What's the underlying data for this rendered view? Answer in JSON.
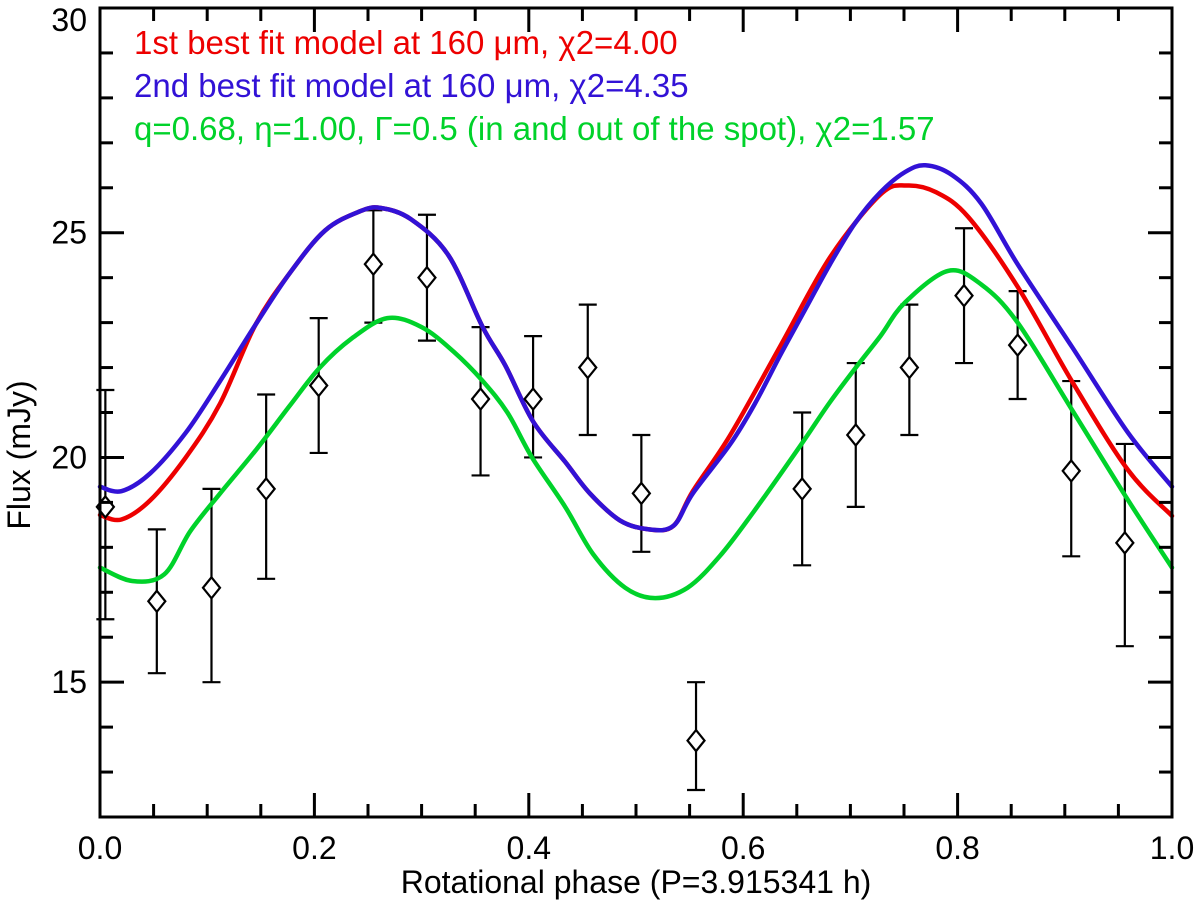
{
  "figure": {
    "background": "#ffffff",
    "axes": {
      "x": {
        "label": "Rotational phase (P=3.915341 h)",
        "min": 0.0,
        "max": 1.0,
        "major_ticks": [
          0.0,
          0.2,
          0.4,
          0.6,
          0.8,
          1.0
        ],
        "tick_labels": [
          "0.0",
          "0.2",
          "0.4",
          "0.6",
          "0.8",
          "1.0"
        ],
        "minor_step": 0.05
      },
      "y": {
        "label": "Flux (mJy)",
        "min": 12.0,
        "max": 30.0,
        "major_ticks": [
          15,
          20,
          25,
          30
        ],
        "tick_labels": [
          "15",
          "20",
          "25",
          "30"
        ],
        "minor_step": 1
      }
    },
    "legend": [
      {
        "text": "1st best fit model at 160 μm, χ2=4.00",
        "color": "#ed0000"
      },
      {
        "text": "2nd best fit model at 160 μm, χ2=4.35",
        "color": "#3212d6"
      },
      {
        "text": "q=0.68, η=1.00, Γ=0.5 (in and out of the spot), χ2=1.57",
        "color": "#00d22a"
      }
    ]
  },
  "chart_data": {
    "type": "line",
    "title": "",
    "xlabel": "Rotational phase (P=3.915341 h)",
    "ylabel": "Flux (mJy)",
    "xlim": [
      0.0,
      1.0
    ],
    "ylim": [
      12.0,
      30.0
    ],
    "grid": false,
    "legend_position": "top-left-inside",
    "series": [
      {
        "name": "1st best fit model at 160 um, chi2=4.00",
        "color": "#ed0000",
        "points": [
          [
            0.0,
            18.72
          ],
          [
            0.02,
            18.62
          ],
          [
            0.047,
            19.05
          ],
          [
            0.08,
            20.0
          ],
          [
            0.112,
            21.2
          ],
          [
            0.145,
            22.95
          ],
          [
            0.177,
            24.1
          ],
          [
            0.21,
            25.05
          ],
          [
            0.243,
            25.48
          ],
          [
            0.262,
            25.55
          ],
          [
            0.29,
            25.3
          ],
          [
            0.325,
            24.5
          ],
          [
            0.357,
            22.9
          ],
          [
            0.378,
            22.05
          ],
          [
            0.404,
            20.8
          ],
          [
            0.434,
            19.9
          ],
          [
            0.457,
            19.2
          ],
          [
            0.485,
            18.6
          ],
          [
            0.512,
            18.4
          ],
          [
            0.535,
            18.48
          ],
          [
            0.553,
            19.25
          ],
          [
            0.588,
            20.5
          ],
          [
            0.634,
            22.45
          ],
          [
            0.681,
            24.45
          ],
          [
            0.728,
            25.85
          ],
          [
            0.753,
            26.05
          ],
          [
            0.78,
            25.9
          ],
          [
            0.81,
            25.35
          ],
          [
            0.856,
            23.8
          ],
          [
            0.907,
            21.68
          ],
          [
            0.959,
            19.72
          ],
          [
            1.0,
            18.7
          ]
        ]
      },
      {
        "name": "2nd best fit model at 160 um, chi2=4.35",
        "color": "#3212d6",
        "points": [
          [
            0.0,
            19.35
          ],
          [
            0.02,
            19.25
          ],
          [
            0.047,
            19.65
          ],
          [
            0.08,
            20.55
          ],
          [
            0.112,
            21.7
          ],
          [
            0.145,
            22.95
          ],
          [
            0.177,
            24.1
          ],
          [
            0.21,
            25.05
          ],
          [
            0.243,
            25.48
          ],
          [
            0.262,
            25.55
          ],
          [
            0.29,
            25.3
          ],
          [
            0.325,
            24.5
          ],
          [
            0.357,
            22.9
          ],
          [
            0.378,
            22.05
          ],
          [
            0.404,
            20.8
          ],
          [
            0.434,
            19.9
          ],
          [
            0.457,
            19.2
          ],
          [
            0.485,
            18.6
          ],
          [
            0.512,
            18.4
          ],
          [
            0.535,
            18.48
          ],
          [
            0.553,
            19.2
          ],
          [
            0.588,
            20.3
          ],
          [
            0.611,
            21.2
          ],
          [
            0.634,
            22.25
          ],
          [
            0.658,
            23.3
          ],
          [
            0.681,
            24.3
          ],
          [
            0.704,
            25.2
          ],
          [
            0.728,
            25.9
          ],
          [
            0.751,
            26.35
          ],
          [
            0.77,
            26.5
          ],
          [
            0.795,
            26.28
          ],
          [
            0.822,
            25.65
          ],
          [
            0.856,
            24.3
          ],
          [
            0.907,
            22.45
          ],
          [
            0.959,
            20.55
          ],
          [
            1.0,
            19.35
          ]
        ]
      },
      {
        "name": "q=0.68, eta=1.00, Gamma=0.5 (in and out of the spot), chi2=1.57",
        "color": "#00d22a",
        "points": [
          [
            0.0,
            17.55
          ],
          [
            0.03,
            17.25
          ],
          [
            0.06,
            17.4
          ],
          [
            0.084,
            18.35
          ],
          [
            0.112,
            19.2
          ],
          [
            0.145,
            20.15
          ],
          [
            0.177,
            21.15
          ],
          [
            0.205,
            22.0
          ],
          [
            0.235,
            22.65
          ],
          [
            0.268,
            23.1
          ],
          [
            0.3,
            22.9
          ],
          [
            0.33,
            22.35
          ],
          [
            0.357,
            21.7
          ],
          [
            0.38,
            21.0
          ],
          [
            0.403,
            20.0
          ],
          [
            0.434,
            18.9
          ],
          [
            0.46,
            17.85
          ],
          [
            0.49,
            17.1
          ],
          [
            0.518,
            16.87
          ],
          [
            0.548,
            17.1
          ],
          [
            0.578,
            17.8
          ],
          [
            0.61,
            18.8
          ],
          [
            0.653,
            20.25
          ],
          [
            0.68,
            21.2
          ],
          [
            0.705,
            22.0
          ],
          [
            0.728,
            22.7
          ],
          [
            0.751,
            23.45
          ],
          [
            0.791,
            24.15
          ],
          [
            0.822,
            23.85
          ],
          [
            0.856,
            23.0
          ],
          [
            0.907,
            21.05
          ],
          [
            0.959,
            19.05
          ],
          [
            1.0,
            17.55
          ]
        ]
      }
    ],
    "scatter": {
      "name": "observed data",
      "marker": "open-diamond",
      "color": "#000000",
      "points": [
        {
          "phase": 0.005,
          "flux": 18.9,
          "err_lo": 16.4,
          "err_hi": 21.5
        },
        {
          "phase": 0.053,
          "flux": 16.8,
          "err_lo": 15.2,
          "err_hi": 18.4
        },
        {
          "phase": 0.104,
          "flux": 17.1,
          "err_lo": 15.0,
          "err_hi": 19.3
        },
        {
          "phase": 0.155,
          "flux": 19.3,
          "err_lo": 17.3,
          "err_hi": 21.4
        },
        {
          "phase": 0.204,
          "flux": 21.6,
          "err_lo": 20.1,
          "err_hi": 23.1
        },
        {
          "phase": 0.255,
          "flux": 24.3,
          "err_lo": 23.0,
          "err_hi": 25.5
        },
        {
          "phase": 0.305,
          "flux": 24.0,
          "err_lo": 22.6,
          "err_hi": 25.4
        },
        {
          "phase": 0.355,
          "flux": 21.3,
          "err_lo": 19.6,
          "err_hi": 22.9
        },
        {
          "phase": 0.404,
          "flux": 21.3,
          "err_lo": 20.0,
          "err_hi": 22.7
        },
        {
          "phase": 0.455,
          "flux": 22.0,
          "err_lo": 20.5,
          "err_hi": 23.4
        },
        {
          "phase": 0.505,
          "flux": 19.2,
          "err_lo": 17.9,
          "err_hi": 20.5
        },
        {
          "phase": 0.556,
          "flux": 13.7,
          "err_lo": 12.6,
          "err_hi": 15.0
        },
        {
          "phase": 0.655,
          "flux": 19.3,
          "err_lo": 17.6,
          "err_hi": 21.0
        },
        {
          "phase": 0.705,
          "flux": 20.5,
          "err_lo": 18.9,
          "err_hi": 22.1
        },
        {
          "phase": 0.755,
          "flux": 22.0,
          "err_lo": 20.5,
          "err_hi": 23.4
        },
        {
          "phase": 0.806,
          "flux": 23.6,
          "err_lo": 22.1,
          "err_hi": 25.1
        },
        {
          "phase": 0.856,
          "flux": 22.5,
          "err_lo": 21.3,
          "err_hi": 23.7
        },
        {
          "phase": 0.906,
          "flux": 19.7,
          "err_lo": 17.8,
          "err_hi": 21.7
        },
        {
          "phase": 0.956,
          "flux": 18.1,
          "err_lo": 15.8,
          "err_hi": 20.3
        }
      ]
    }
  }
}
